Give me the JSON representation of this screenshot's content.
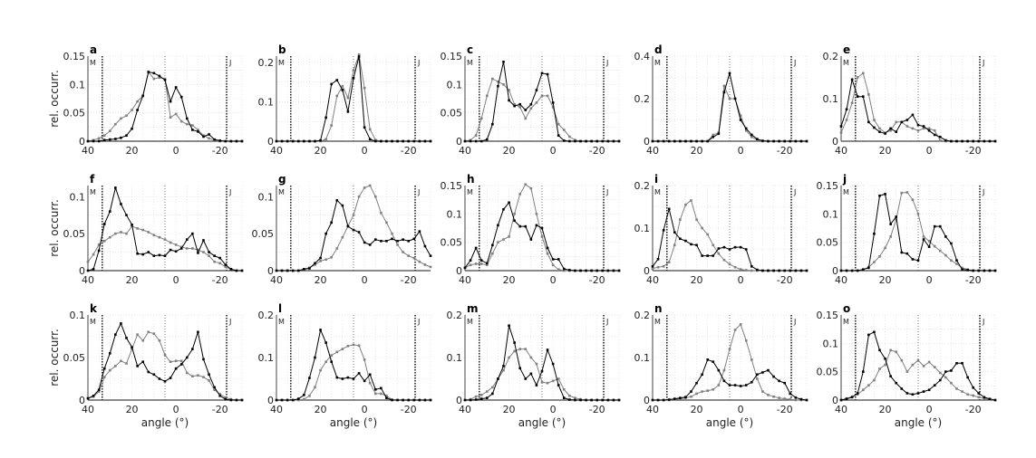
{
  "chart_data": {
    "type": "line",
    "layout": "3 rows x 5 columns of small multiples",
    "xlabel": "angle (°)",
    "ylabel": "rel. occurr.",
    "xlim": [
      40,
      -30
    ],
    "xticks": [
      40,
      20,
      0,
      -20
    ],
    "grid": true,
    "reference_lines": [
      {
        "x": 33.5,
        "label": "M",
        "style": "heavy-dotted"
      },
      {
        "x": 5,
        "label": "",
        "style": "light-dotted"
      },
      {
        "x": -23,
        "label": "J",
        "style": "heavy-dotted"
      }
    ],
    "series_colors": {
      "black": "#000000",
      "gray": "#808080"
    },
    "x": [
      40,
      37.5,
      35,
      32.5,
      30,
      27.5,
      25,
      22.5,
      20,
      17.5,
      15,
      12.5,
      10,
      7.5,
      5,
      2.5,
      0,
      -2.5,
      -5,
      -7.5,
      -10,
      -12.5,
      -15,
      -17.5,
      -20,
      -22.5,
      -25,
      -27.5,
      -30
    ],
    "panels": [
      {
        "label": "a",
        "ylim": [
          0,
          0.15
        ],
        "yticks": [
          0,
          0.05,
          0.1,
          0.15
        ],
        "yticklabels": [
          "0",
          "0.05",
          "0.1",
          "0.15"
        ],
        "black": [
          0,
          0,
          0,
          0.002,
          0.003,
          0.004,
          0.006,
          0.01,
          0.022,
          0.055,
          0.08,
          0.122,
          0.12,
          0.115,
          0.108,
          0.07,
          0.095,
          0.078,
          0.04,
          0.02,
          0.017,
          0.008,
          0.012,
          0.003,
          0.001,
          0,
          0,
          0,
          0
        ],
        "gray": [
          0,
          0.002,
          0.005,
          0.01,
          0.018,
          0.03,
          0.04,
          0.045,
          0.055,
          0.07,
          0.08,
          0.122,
          0.11,
          0.112,
          0.11,
          0.042,
          0.048,
          0.035,
          0.03,
          0.028,
          0.02,
          0.01,
          0.005,
          0.002,
          0,
          0,
          0,
          0,
          0
        ]
      },
      {
        "label": "b",
        "ylim": [
          0,
          0.216
        ],
        "yticks": [
          0,
          0.1,
          0.2
        ],
        "yticklabels": [
          "0",
          "0.1",
          "0.2"
        ],
        "black": [
          0,
          0,
          0,
          0,
          0,
          0,
          0,
          0,
          0.002,
          0.06,
          0.145,
          0.155,
          0.13,
          0.075,
          0.16,
          0.215,
          0.035,
          0.005,
          0,
          0,
          0,
          0,
          0,
          0,
          0,
          0,
          0,
          0,
          0
        ],
        "gray": [
          0,
          0,
          0,
          0,
          0,
          0,
          0,
          0,
          0,
          0.005,
          0.04,
          0.115,
          0.14,
          0.11,
          0.18,
          0.22,
          0.135,
          0.03,
          0.003,
          0,
          0,
          0,
          0,
          0,
          0,
          0,
          0,
          0,
          0
        ]
      },
      {
        "label": "c",
        "ylim": [
          0,
          0.15
        ],
        "yticks": [
          0,
          0.05,
          0.1,
          0.15
        ],
        "yticklabels": [
          "0",
          "0.05",
          "0.1",
          "0.15"
        ],
        "black": [
          0,
          0,
          0,
          0,
          0.003,
          0.03,
          0.097,
          0.14,
          0.072,
          0.062,
          0.065,
          0.055,
          0.065,
          0.09,
          0.12,
          0.118,
          0.068,
          0.01,
          0.001,
          0,
          0,
          0,
          0,
          0,
          0,
          0,
          0,
          0,
          0
        ],
        "gray": [
          0,
          0.002,
          0.01,
          0.04,
          0.08,
          0.11,
          0.105,
          0.1,
          0.09,
          0.065,
          0.06,
          0.04,
          0.058,
          0.068,
          0.08,
          0.08,
          0.06,
          0.03,
          0.02,
          0.008,
          0.002,
          0,
          0,
          0,
          0,
          0,
          0,
          0,
          0
        ]
      },
      {
        "label": "d",
        "ylim": [
          0,
          0.4
        ],
        "yticks": [
          0,
          0.2,
          0.4
        ],
        "yticklabels": [
          "0",
          "0.2",
          "0.4"
        ],
        "black": [
          0,
          0,
          0,
          0,
          0,
          0,
          0,
          0,
          0,
          0,
          0,
          0.02,
          0.035,
          0.23,
          0.32,
          0.2,
          0.1,
          0.06,
          0.03,
          0.01,
          0.002,
          0,
          0,
          0,
          0,
          0,
          0,
          0,
          0
        ],
        "gray": [
          0,
          0,
          0,
          0,
          0,
          0,
          0,
          0,
          0,
          0,
          0,
          0.03,
          0.04,
          0.26,
          0.2,
          0.2,
          0.12,
          0.05,
          0.02,
          0.005,
          0,
          0,
          0,
          0,
          0,
          0,
          0,
          0,
          0
        ]
      },
      {
        "label": "e",
        "ylim": [
          0,
          0.2
        ],
        "yticks": [
          0,
          0.1,
          0.2
        ],
        "yticklabels": [
          "0",
          "0.1",
          "0.2"
        ],
        "black": [
          0.035,
          0.075,
          0.145,
          0.105,
          0.105,
          0.045,
          0.032,
          0.022,
          0.018,
          0.03,
          0.022,
          0.045,
          0.05,
          0.062,
          0.038,
          0.035,
          0.025,
          0.015,
          0.01,
          0.002,
          0,
          0,
          0,
          0,
          0,
          0,
          0,
          0,
          0
        ],
        "gray": [
          0.02,
          0.05,
          0.09,
          0.15,
          0.16,
          0.11,
          0.05,
          0.03,
          0.02,
          0.025,
          0.045,
          0.045,
          0.035,
          0.03,
          0.025,
          0.03,
          0.03,
          0.025,
          0.002,
          0,
          0,
          0,
          0,
          0,
          0,
          0,
          0,
          0,
          0
        ]
      },
      {
        "label": "f",
        "ylim": [
          0,
          0.115
        ],
        "yticks": [
          0,
          0.05,
          0.1
        ],
        "yticklabels": [
          "0",
          "0.05",
          "0.1"
        ],
        "black": [
          0,
          0.002,
          0.027,
          0.063,
          0.08,
          0.112,
          0.09,
          0.075,
          0.062,
          0.023,
          0.022,
          0.025,
          0.02,
          0.021,
          0.02,
          0.028,
          0.026,
          0.03,
          0.042,
          0.05,
          0.024,
          0.041,
          0.025,
          0.02,
          0.017,
          0.008,
          0.002,
          0,
          0
        ],
        "gray": [
          0.012,
          0.022,
          0.035,
          0.04,
          0.045,
          0.05,
          0.052,
          0.05,
          0.06,
          0.057,
          0.055,
          0.052,
          0.048,
          0.045,
          0.042,
          0.038,
          0.035,
          0.032,
          0.03,
          0.03,
          0.028,
          0.025,
          0.02,
          0.012,
          0.01,
          0.005,
          0.002,
          0,
          0
        ]
      },
      {
        "label": "g",
        "ylim": [
          0,
          0.115
        ],
        "yticks": [
          0,
          0.05,
          0.1
        ],
        "yticklabels": [
          "0",
          "0.05",
          "0.1"
        ],
        "black": [
          0,
          0,
          0,
          0,
          0,
          0.002,
          0.003,
          0.01,
          0.017,
          0.05,
          0.065,
          0.095,
          0.088,
          0.06,
          0.055,
          0.052,
          0.038,
          0.035,
          0.042,
          0.04,
          0.04,
          0.043,
          0.04,
          0.042,
          0.04,
          0.043,
          0.053,
          0.033,
          0.02
        ],
        "gray": [
          0,
          0,
          0,
          0,
          0,
          0.002,
          0.004,
          0.008,
          0.013,
          0.015,
          0.018,
          0.03,
          0.045,
          0.06,
          0.075,
          0.1,
          0.112,
          0.115,
          0.1,
          0.078,
          0.065,
          0.05,
          0.035,
          0.025,
          0.02,
          0.017,
          0.012,
          0.008,
          0.005
        ]
      },
      {
        "label": "h",
        "ylim": [
          0,
          0.15
        ],
        "yticks": [
          0,
          0.05,
          0.1,
          0.15
        ],
        "yticklabels": [
          "0",
          "0.05",
          "0.1",
          "0.15"
        ],
        "black": [
          0.005,
          0.018,
          0.04,
          0.018,
          0.013,
          0.045,
          0.08,
          0.108,
          0.12,
          0.088,
          0.078,
          0.078,
          0.055,
          0.08,
          0.075,
          0.04,
          0.02,
          0.02,
          0.003,
          0.001,
          0,
          0,
          0,
          0,
          0,
          0,
          0,
          0,
          0
        ],
        "gray": [
          0.005,
          0.01,
          0.012,
          0.012,
          0.01,
          0.03,
          0.05,
          0.055,
          0.06,
          0.1,
          0.135,
          0.152,
          0.145,
          0.1,
          0.06,
          0.03,
          0.01,
          0.002,
          0,
          0,
          0,
          0,
          0,
          0,
          0,
          0,
          0,
          0,
          0
        ]
      },
      {
        "label": "i",
        "ylim": [
          0,
          0.2
        ],
        "yticks": [
          0,
          0.1,
          0.2
        ],
        "yticklabels": [
          "0",
          "0.1",
          "0.2"
        ],
        "black": [
          0.01,
          0.027,
          0.095,
          0.145,
          0.09,
          0.075,
          0.07,
          0.062,
          0.06,
          0.035,
          0.035,
          0.035,
          0.052,
          0.055,
          0.05,
          0.055,
          0.055,
          0.05,
          0.01,
          0.002,
          0,
          0,
          0,
          0,
          0,
          0,
          0,
          0,
          0
        ],
        "gray": [
          0.005,
          0.008,
          0.01,
          0.02,
          0.06,
          0.12,
          0.155,
          0.165,
          0.12,
          0.1,
          0.085,
          0.06,
          0.04,
          0.025,
          0.015,
          0.008,
          0.003,
          0.001,
          0,
          0,
          0,
          0,
          0,
          0,
          0,
          0,
          0,
          0,
          0
        ]
      },
      {
        "label": "j",
        "ylim": [
          0,
          0.15
        ],
        "yticks": [
          0,
          0.05,
          0.1,
          0.15
        ],
        "yticklabels": [
          "0",
          "0.05",
          "0.1",
          "0.15"
        ],
        "black": [
          0,
          0,
          0,
          0,
          0.002,
          0.005,
          0.065,
          0.132,
          0.135,
          0.082,
          0.095,
          0.032,
          0.03,
          0.02,
          0.018,
          0.055,
          0.042,
          0.078,
          0.078,
          0.06,
          0.048,
          0.018,
          0.002,
          0.001,
          0,
          0,
          0,
          0,
          0
        ],
        "gray": [
          0,
          0,
          0,
          0,
          0.002,
          0.006,
          0.015,
          0.025,
          0.04,
          0.06,
          0.09,
          0.137,
          0.138,
          0.125,
          0.1,
          0.06,
          0.052,
          0.043,
          0.035,
          0.027,
          0.018,
          0.012,
          0.005,
          0.002,
          0,
          0,
          0,
          0,
          0
        ]
      },
      {
        "label": "k",
        "ylim": [
          0,
          0.1
        ],
        "yticks": [
          0,
          0.05,
          0.1
        ],
        "yticklabels": [
          "0",
          "0.05",
          "0.1"
        ],
        "black": [
          0.002,
          0.005,
          0.012,
          0.037,
          0.055,
          0.077,
          0.09,
          0.073,
          0.062,
          0.04,
          0.045,
          0.033,
          0.03,
          0.025,
          0.022,
          0.026,
          0.037,
          0.042,
          0.05,
          0.06,
          0.08,
          0.048,
          0.03,
          0.015,
          0.005,
          0.001,
          0,
          0,
          0
        ],
        "gray": [
          0.002,
          0.004,
          0.01,
          0.027,
          0.035,
          0.04,
          0.046,
          0.043,
          0.06,
          0.077,
          0.07,
          0.08,
          0.078,
          0.07,
          0.053,
          0.045,
          0.046,
          0.046,
          0.032,
          0.028,
          0.029,
          0.027,
          0.023,
          0.012,
          0.007,
          0.003,
          0.001,
          0,
          0
        ]
      },
      {
        "label": "l",
        "ylim": [
          0,
          0.2
        ],
        "yticks": [
          0,
          0.1,
          0.2
        ],
        "yticklabels": [
          "0",
          "0.1",
          "0.2"
        ],
        "black": [
          0,
          0,
          0,
          0,
          0.003,
          0.012,
          0.052,
          0.1,
          0.165,
          0.135,
          0.09,
          0.053,
          0.05,
          0.053,
          0.05,
          0.063,
          0.045,
          0.06,
          0.025,
          0.028,
          0.005,
          0,
          0,
          0,
          0,
          0,
          0,
          0,
          0
        ],
        "gray": [
          0,
          0,
          0,
          0,
          0,
          0.002,
          0.01,
          0.03,
          0.07,
          0.09,
          0.105,
          0.113,
          0.12,
          0.127,
          0.13,
          0.128,
          0.095,
          0.04,
          0.015,
          0.015,
          0.01,
          0.001,
          0,
          0,
          0,
          0,
          0,
          0,
          0
        ]
      },
      {
        "label": "m",
        "ylim": [
          0,
          0.2
        ],
        "yticks": [
          0,
          0.1,
          0.2
        ],
        "yticklabels": [
          "0",
          "0.1",
          "0.2"
        ],
        "black": [
          0,
          0,
          0.001,
          0.003,
          0.005,
          0.015,
          0.05,
          0.08,
          0.175,
          0.135,
          0.075,
          0.05,
          0.062,
          0.035,
          0.068,
          0.118,
          0.085,
          0.035,
          0.005,
          0.001,
          0,
          0,
          0,
          0,
          0,
          0,
          0,
          0,
          0
        ],
        "gray": [
          0,
          0.002,
          0.008,
          0.012,
          0.02,
          0.03,
          0.05,
          0.07,
          0.1,
          0.115,
          0.12,
          0.12,
          0.1,
          0.085,
          0.042,
          0.04,
          0.045,
          0.05,
          0.025,
          0.01,
          0.005,
          0.002,
          0,
          0,
          0,
          0,
          0,
          0,
          0
        ]
      },
      {
        "label": "n",
        "ylim": [
          0,
          0.2
        ],
        "yticks": [
          0,
          0.1,
          0.2
        ],
        "yticklabels": [
          "0",
          "0.1",
          "0.2"
        ],
        "black": [
          0,
          0,
          0,
          0.001,
          0.003,
          0.005,
          0.007,
          0.02,
          0.04,
          0.06,
          0.095,
          0.09,
          0.07,
          0.045,
          0.035,
          0.035,
          0.033,
          0.035,
          0.042,
          0.06,
          0.065,
          0.07,
          0.055,
          0.045,
          0.04,
          0.015,
          0.006,
          0.002,
          0
        ],
        "gray": [
          0,
          0,
          0,
          0,
          0.002,
          0.003,
          0.005,
          0.008,
          0.015,
          0.02,
          0.022,
          0.025,
          0.035,
          0.07,
          0.12,
          0.165,
          0.178,
          0.14,
          0.095,
          0.05,
          0.02,
          0.012,
          0.008,
          0.005,
          0.003,
          0.002,
          0,
          0,
          0
        ]
      },
      {
        "label": "o",
        "ylim": [
          0,
          0.15
        ],
        "yticks": [
          0,
          0.05,
          0.1,
          0.15
        ],
        "yticklabels": [
          "0",
          "0.05",
          "0.1",
          "0.15"
        ],
        "black": [
          0,
          0.002,
          0.005,
          0.012,
          0.05,
          0.115,
          0.12,
          0.088,
          0.073,
          0.042,
          0.03,
          0.02,
          0.012,
          0.01,
          0.012,
          0.015,
          0.018,
          0.026,
          0.035,
          0.05,
          0.052,
          0.065,
          0.065,
          0.04,
          0.022,
          0.012,
          0.005,
          0.002,
          0
        ],
        "gray": [
          0,
          0.003,
          0.006,
          0.01,
          0.018,
          0.026,
          0.035,
          0.055,
          0.062,
          0.088,
          0.085,
          0.07,
          0.05,
          0.062,
          0.07,
          0.06,
          0.067,
          0.058,
          0.048,
          0.04,
          0.03,
          0.02,
          0.015,
          0.01,
          0.008,
          0.005,
          0.003,
          0.001,
          0
        ]
      }
    ]
  }
}
